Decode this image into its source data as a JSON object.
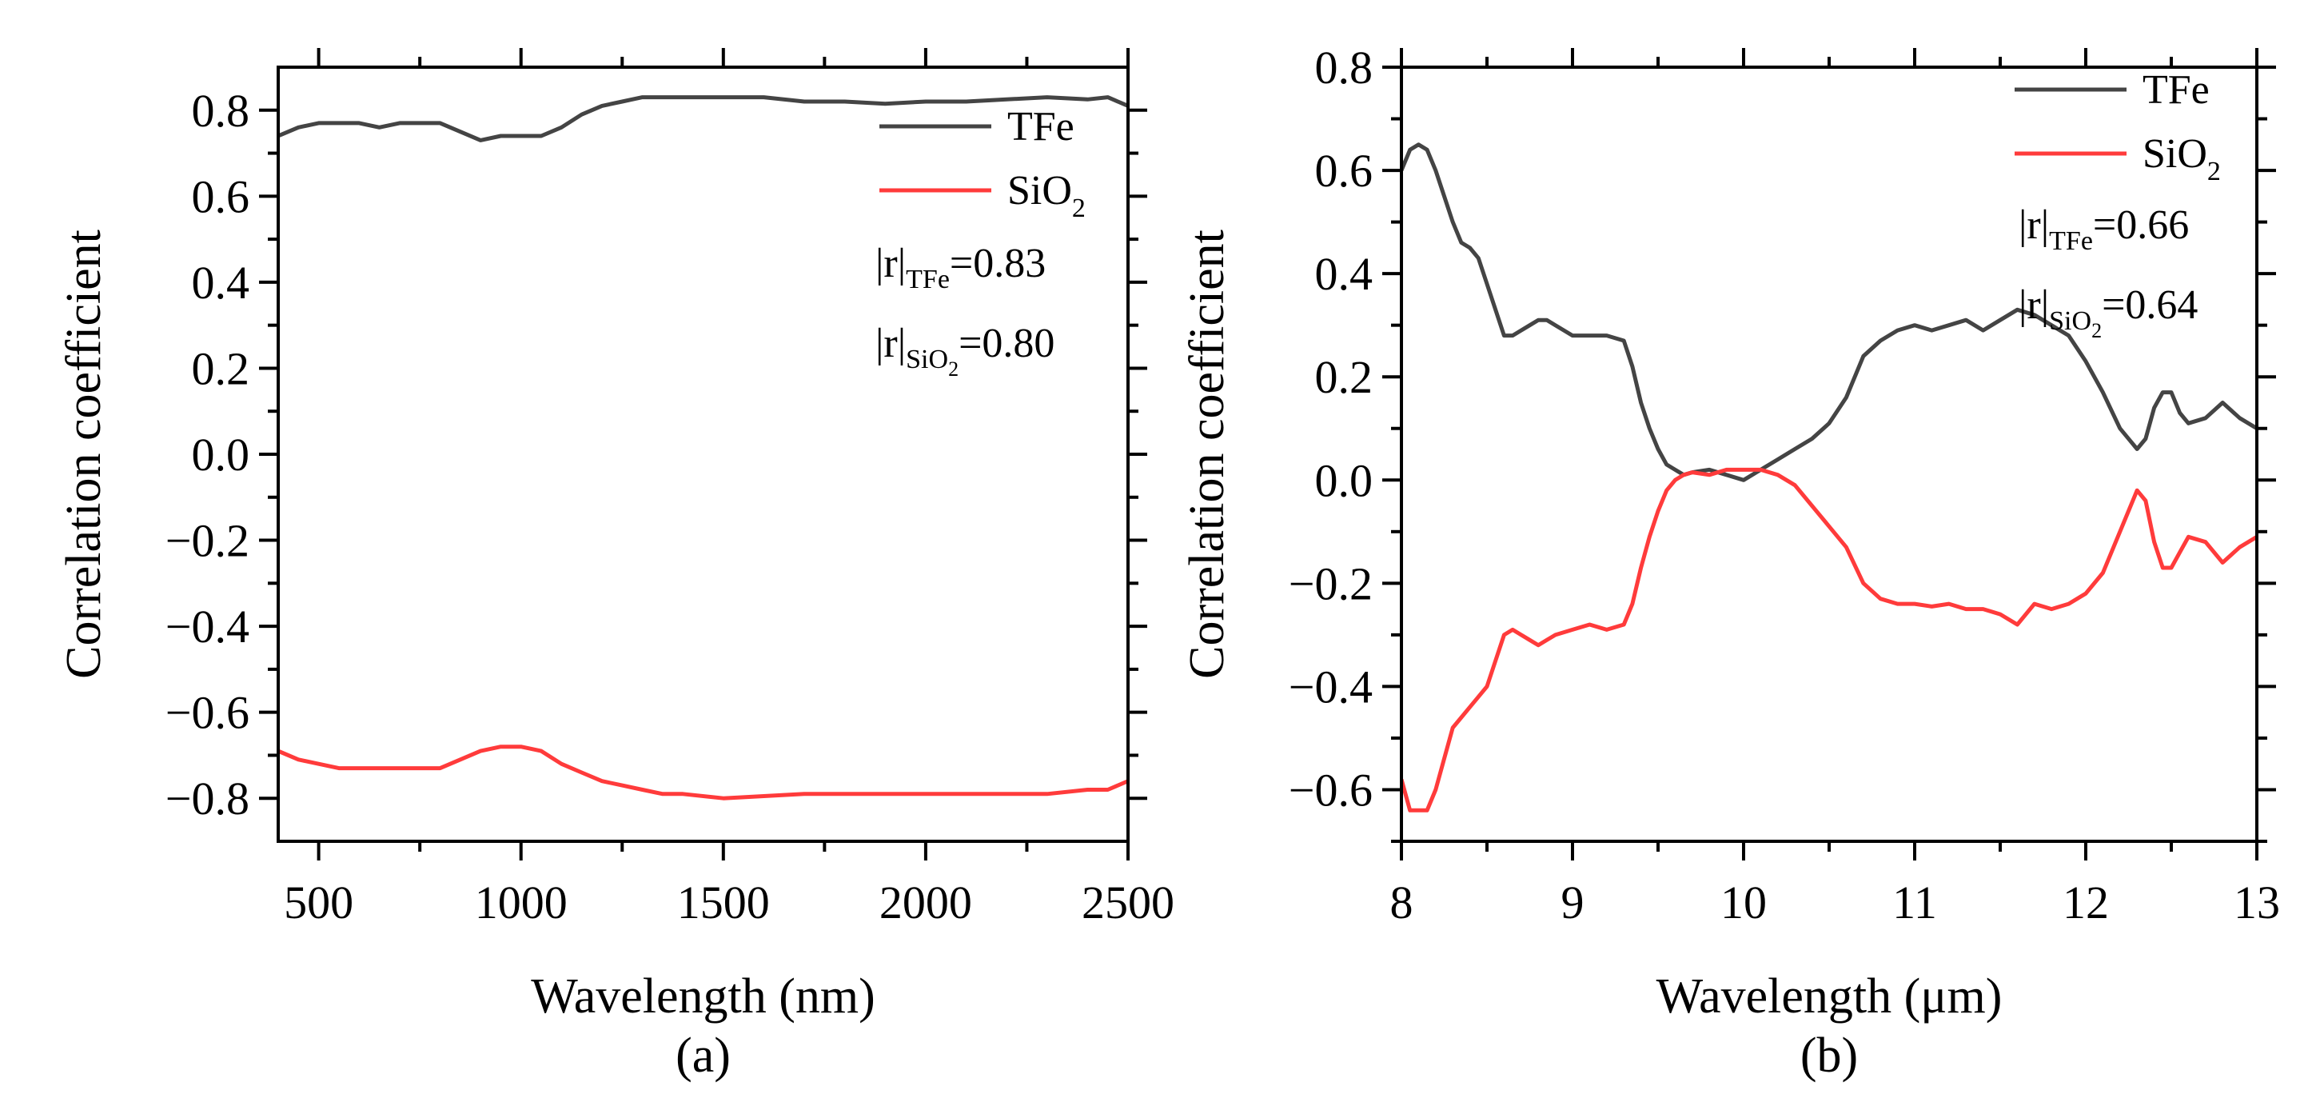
{
  "chart_data": [
    {
      "type": "line",
      "panel_label": "(a)",
      "title": "",
      "xlabel": "Wavelength (nm)",
      "ylabel": "Correlation coefficient",
      "xlim": [
        400,
        2500
      ],
      "ylim": [
        -0.9,
        0.9
      ],
      "xticks": [
        500,
        1000,
        1500,
        2000,
        2500
      ],
      "yticks": [
        -0.8,
        -0.6,
        -0.4,
        -0.2,
        0.0,
        0.2,
        0.4,
        0.6,
        0.8
      ],
      "ytick_labels": [
        "−0.8",
        "−0.6",
        "−0.4",
        "−0.2",
        "0.0",
        "0.2",
        "0.4",
        "0.6",
        "0.8"
      ],
      "legend_position": "top-right",
      "series": [
        {
          "name": "TFe",
          "color": "#444444",
          "x": [
            400,
            450,
            500,
            550,
            600,
            650,
            700,
            750,
            800,
            850,
            900,
            950,
            1000,
            1050,
            1100,
            1150,
            1200,
            1250,
            1300,
            1350,
            1400,
            1500,
            1600,
            1700,
            1800,
            1900,
            2000,
            2100,
            2200,
            2300,
            2400,
            2450,
            2500
          ],
          "y": [
            0.74,
            0.76,
            0.77,
            0.77,
            0.77,
            0.76,
            0.77,
            0.77,
            0.77,
            0.75,
            0.73,
            0.74,
            0.74,
            0.74,
            0.76,
            0.79,
            0.81,
            0.82,
            0.83,
            0.83,
            0.83,
            0.83,
            0.83,
            0.82,
            0.82,
            0.815,
            0.82,
            0.82,
            0.825,
            0.83,
            0.825,
            0.83,
            0.81
          ]
        },
        {
          "name": "SiO2",
          "color": "#ff3b3b",
          "x": [
            400,
            450,
            500,
            550,
            600,
            650,
            700,
            750,
            800,
            850,
            900,
            950,
            1000,
            1050,
            1100,
            1150,
            1200,
            1250,
            1300,
            1350,
            1400,
            1500,
            1600,
            1700,
            1800,
            1900,
            2000,
            2100,
            2200,
            2300,
            2400,
            2450,
            2500
          ],
          "y": [
            -0.69,
            -0.71,
            -0.72,
            -0.73,
            -0.73,
            -0.73,
            -0.73,
            -0.73,
            -0.73,
            -0.71,
            -0.69,
            -0.68,
            -0.68,
            -0.69,
            -0.72,
            -0.74,
            -0.76,
            -0.77,
            -0.78,
            -0.79,
            -0.79,
            -0.8,
            -0.795,
            -0.79,
            -0.79,
            -0.79,
            -0.79,
            -0.79,
            -0.79,
            -0.79,
            -0.78,
            -0.78,
            -0.76
          ]
        }
      ],
      "legend": [
        {
          "label": "TFe"
        },
        {
          "label": "SiO",
          "sub": "2"
        }
      ],
      "annotations": [
        {
          "prefix": "|r|",
          "sub": "TFe",
          "value": "=0.83"
        },
        {
          "prefix": "|r|",
          "sub": "SiO",
          "subsub": "2",
          "value": "=0.80"
        }
      ]
    },
    {
      "type": "line",
      "panel_label": "(b)",
      "title": "",
      "xlabel": "Wavelength (μm)",
      "ylabel": "Correlation coefficient",
      "xlim": [
        8,
        13
      ],
      "ylim": [
        -0.7,
        0.8
      ],
      "xticks": [
        8,
        9,
        10,
        11,
        12,
        13
      ],
      "yticks": [
        -0.6,
        -0.4,
        -0.2,
        0.0,
        0.2,
        0.4,
        0.6,
        0.8
      ],
      "ytick_labels": [
        "−0.6",
        "−0.4",
        "−0.2",
        "0.0",
        "0.2",
        "0.4",
        "0.6",
        "0.8"
      ],
      "legend_position": "top-right",
      "series": [
        {
          "name": "TFe",
          "color": "#444444",
          "x": [
            8.0,
            8.05,
            8.1,
            8.15,
            8.2,
            8.25,
            8.3,
            8.35,
            8.4,
            8.45,
            8.5,
            8.55,
            8.6,
            8.65,
            8.7,
            8.75,
            8.8,
            8.85,
            8.9,
            9.0,
            9.1,
            9.2,
            9.3,
            9.35,
            9.4,
            9.45,
            9.5,
            9.55,
            9.6,
            9.65,
            9.7,
            9.8,
            9.9,
            10.0,
            10.1,
            10.2,
            10.3,
            10.4,
            10.5,
            10.6,
            10.7,
            10.8,
            10.9,
            11.0,
            11.1,
            11.2,
            11.3,
            11.4,
            11.5,
            11.6,
            11.7,
            11.8,
            11.9,
            12.0,
            12.1,
            12.2,
            12.3,
            12.35,
            12.4,
            12.45,
            12.5,
            12.55,
            12.6,
            12.7,
            12.8,
            12.9,
            13.0
          ],
          "y": [
            0.6,
            0.64,
            0.65,
            0.64,
            0.6,
            0.55,
            0.5,
            0.46,
            0.45,
            0.43,
            0.38,
            0.33,
            0.28,
            0.28,
            0.29,
            0.3,
            0.31,
            0.31,
            0.3,
            0.28,
            0.28,
            0.28,
            0.27,
            0.22,
            0.15,
            0.1,
            0.06,
            0.03,
            0.02,
            0.01,
            0.015,
            0.02,
            0.01,
            0.0,
            0.02,
            0.04,
            0.06,
            0.08,
            0.11,
            0.16,
            0.24,
            0.27,
            0.29,
            0.3,
            0.29,
            0.3,
            0.31,
            0.29,
            0.31,
            0.33,
            0.32,
            0.3,
            0.28,
            0.23,
            0.17,
            0.1,
            0.06,
            0.08,
            0.14,
            0.17,
            0.17,
            0.13,
            0.11,
            0.12,
            0.15,
            0.12,
            0.1
          ]
        },
        {
          "name": "SiO2",
          "color": "#ff3b3b",
          "x": [
            8.0,
            8.05,
            8.1,
            8.15,
            8.2,
            8.25,
            8.3,
            8.35,
            8.4,
            8.45,
            8.5,
            8.55,
            8.6,
            8.65,
            8.7,
            8.75,
            8.8,
            8.85,
            8.9,
            9.0,
            9.1,
            9.2,
            9.3,
            9.35,
            9.4,
            9.45,
            9.5,
            9.55,
            9.6,
            9.65,
            9.7,
            9.8,
            9.9,
            10.0,
            10.1,
            10.2,
            10.3,
            10.4,
            10.5,
            10.6,
            10.7,
            10.8,
            10.9,
            11.0,
            11.1,
            11.2,
            11.3,
            11.4,
            11.5,
            11.6,
            11.7,
            11.8,
            11.9,
            12.0,
            12.1,
            12.2,
            12.3,
            12.35,
            12.4,
            12.45,
            12.5,
            12.55,
            12.6,
            12.7,
            12.8,
            12.9,
            13.0
          ],
          "y": [
            -0.58,
            -0.64,
            -0.64,
            -0.64,
            -0.6,
            -0.54,
            -0.48,
            -0.46,
            -0.44,
            -0.42,
            -0.4,
            -0.35,
            -0.3,
            -0.29,
            -0.3,
            -0.31,
            -0.32,
            -0.31,
            -0.3,
            -0.29,
            -0.28,
            -0.29,
            -0.28,
            -0.24,
            -0.17,
            -0.11,
            -0.06,
            -0.02,
            0.0,
            0.01,
            0.015,
            0.01,
            0.02,
            0.02,
            0.02,
            0.01,
            -0.01,
            -0.05,
            -0.09,
            -0.13,
            -0.2,
            -0.23,
            -0.24,
            -0.24,
            -0.245,
            -0.24,
            -0.25,
            -0.25,
            -0.26,
            -0.28,
            -0.24,
            -0.25,
            -0.24,
            -0.22,
            -0.18,
            -0.1,
            -0.02,
            -0.04,
            -0.12,
            -0.17,
            -0.17,
            -0.14,
            -0.11,
            -0.12,
            -0.16,
            -0.13,
            -0.11
          ]
        }
      ],
      "legend": [
        {
          "label": "TFe"
        },
        {
          "label": "SiO",
          "sub": "2"
        }
      ],
      "annotations": [
        {
          "prefix": "|r|",
          "sub": "TFe",
          "value": "=0.66"
        },
        {
          "prefix": "|r|",
          "sub": "SiO",
          "subsub": "2",
          "value": "=0.64"
        }
      ]
    }
  ]
}
